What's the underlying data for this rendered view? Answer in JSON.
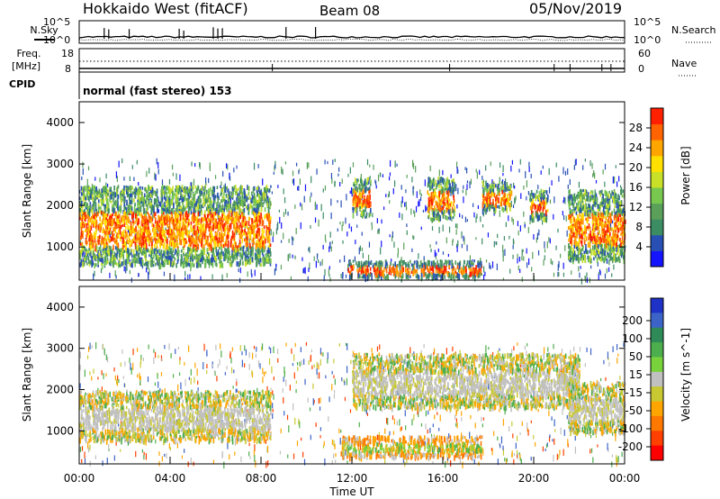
{
  "header": {
    "station": "Hokkaido West (fitACF)",
    "beam": "Beam 08",
    "date": "05/Nov/2019",
    "mode": "normal (fast stereo) 153"
  },
  "side_labels": {
    "nsky": "N.Sky",
    "nsearch": "N.Search",
    "freq_line1": "Freq.",
    "freq_line2": "[MHz]",
    "cpid": "CPID",
    "nave": "Nave"
  },
  "noise_axis": {
    "top": "10^5",
    "bottom": "10^0"
  },
  "freq_axis": {
    "left_ticks": [
      "18",
      "8"
    ],
    "right_ticks": [
      "60",
      "0"
    ]
  },
  "chart_data": [
    {
      "type": "heatmap",
      "name": "power",
      "ylabel": "Slant Range [km]",
      "yticks": [
        "1000",
        "2000",
        "3000",
        "4000"
      ],
      "ylim": [
        200,
        4500
      ],
      "xlim": [
        0,
        24
      ],
      "colorbar": {
        "label": "Power [dB]",
        "ticks": [
          "4",
          "8",
          "12",
          "16",
          "20",
          "24",
          "28"
        ],
        "colors": [
          "#1414ff",
          "#2850b4",
          "#3c8c64",
          "#5aa05a",
          "#78c850",
          "#c8e028",
          "#ffe000",
          "#ffa500",
          "#ff6400",
          "#ff2000"
        ]
      },
      "echo_regions": [
        {
          "t0": 0.0,
          "t1": 8.4,
          "r0": 600,
          "r1": 2500,
          "level": "high"
        },
        {
          "t0": 12.0,
          "t1": 12.8,
          "r0": 1800,
          "r1": 2700,
          "level": "high"
        },
        {
          "t0": 15.3,
          "t1": 16.5,
          "r0": 1700,
          "r1": 2700,
          "level": "high"
        },
        {
          "t0": 17.7,
          "t1": 19.0,
          "r0": 1900,
          "r1": 2600,
          "level": "high"
        },
        {
          "t0": 19.8,
          "t1": 20.6,
          "r0": 1700,
          "r1": 2400,
          "level": "high"
        },
        {
          "t0": 21.5,
          "t1": 24.0,
          "r0": 700,
          "r1": 2400,
          "level": "high"
        },
        {
          "t0": 11.8,
          "t1": 17.7,
          "r0": 300,
          "r1": 700,
          "level": "mid"
        }
      ]
    },
    {
      "type": "heatmap",
      "name": "velocity",
      "ylabel": "Slant Range [km]",
      "yticks": [
        "1000",
        "2000",
        "3000",
        "4000"
      ],
      "ylim": [
        200,
        4500
      ],
      "xlim": [
        0,
        24
      ],
      "xticks": [
        "00:00",
        "04:00",
        "08:00",
        "12:00",
        "16:00",
        "20:00",
        "00:00"
      ],
      "xlabel": "Time UT",
      "colorbar": {
        "label": "Velocity [m s^-1]",
        "ticks": [
          "200",
          "100",
          "50",
          "15",
          "-15",
          "-50",
          "-100",
          "-200"
        ],
        "colors": [
          "#1e32c8",
          "#3c64c8",
          "#2e8b57",
          "#4cae4c",
          "#78d23c",
          "#c0c0c0",
          "#c8c832",
          "#ffa500",
          "#ff7800",
          "#ff4000",
          "#ff0000"
        ]
      },
      "echo_regions": [
        {
          "t0": 0.0,
          "t1": 8.4,
          "r0": 800,
          "r1": 2000,
          "level": "ground"
        },
        {
          "t0": 12.0,
          "t1": 22.0,
          "r0": 1600,
          "r1": 2900,
          "level": "ground"
        },
        {
          "t0": 21.5,
          "t1": 24.0,
          "r0": 1000,
          "r1": 2200,
          "level": "ground"
        },
        {
          "t0": 11.5,
          "t1": 17.7,
          "r0": 400,
          "r1": 900,
          "level": "mixed"
        }
      ]
    }
  ]
}
